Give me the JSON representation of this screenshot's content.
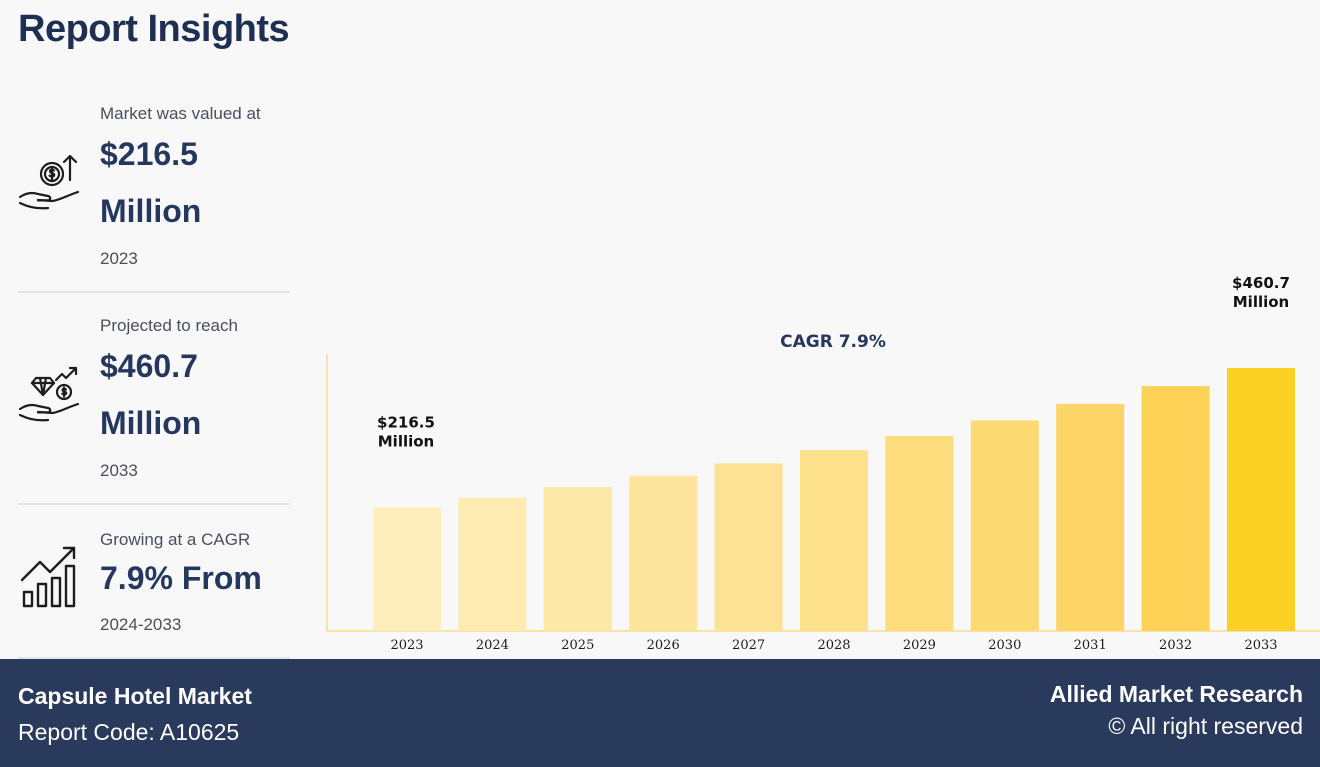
{
  "title": "Report Insights",
  "stats": [
    {
      "label": "Market was valued at",
      "value_line1": "$216.5",
      "value_line2": "Million",
      "sub": "2023",
      "icon": "money-hand-icon"
    },
    {
      "label": "Projected to reach",
      "value_line1": "$460.7",
      "value_line2": "Million",
      "sub": "2033",
      "icon": "diamond-hand-icon"
    },
    {
      "label": "Growing at a CAGR",
      "value_line1": "7.9% From",
      "sub": "2024-2033",
      "icon": "growth-chart-icon"
    }
  ],
  "chart_data": {
    "type": "bar",
    "categories": [
      "2023",
      "2024",
      "2025",
      "2026",
      "2027",
      "2028",
      "2029",
      "2030",
      "2031",
      "2032",
      "2033"
    ],
    "values": [
      216.5,
      233.6,
      252.1,
      272.0,
      293.5,
      316.7,
      341.7,
      368.7,
      397.8,
      429.2,
      460.7
    ],
    "annotation": "CAGR 7.9%",
    "first_label": [
      "$216.5",
      "Million"
    ],
    "last_label": [
      "$460.7",
      "Million"
    ],
    "colors": [
      "#fdeebc",
      "#fdebb2",
      "#fde8a8",
      "#fde59e",
      "#fde294",
      "#fde08a",
      "#fddc7e",
      "#fdd972",
      "#fdd566",
      "#fdd257",
      "#fccf25"
    ]
  },
  "footer": {
    "market": "Capsule Hotel Market",
    "code": "Report Code: A10625",
    "brand": "Allied Market Research",
    "rights": "© All right reserved"
  }
}
